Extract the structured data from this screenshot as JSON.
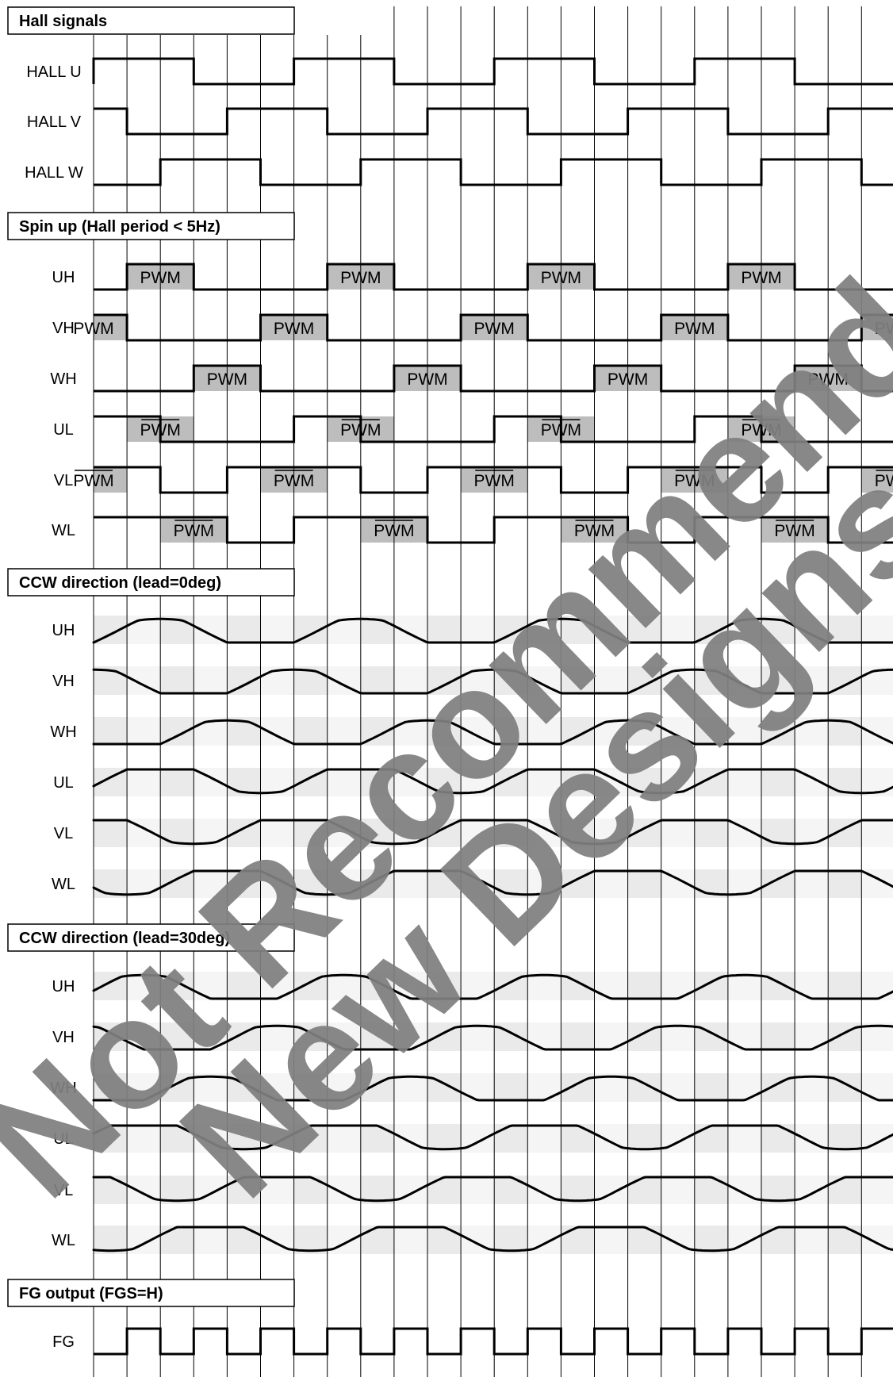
{
  "sections": [
    {
      "title": "Hall signals",
      "signals": [
        "HALL U",
        "HALL V",
        "HALL W"
      ]
    },
    {
      "title": "Spin up (Hall period < 5Hz)",
      "signals": [
        "UH",
        "VH",
        "WH",
        "UL",
        "VL",
        "WL"
      ]
    },
    {
      "title": "CCW direction (lead=0deg)",
      "signals": [
        "UH",
        "VH",
        "WH",
        "UL",
        "VL",
        "WL"
      ]
    },
    {
      "title": "CCW direction (lead=30deg)",
      "signals": [
        "UH",
        "VH",
        "WH",
        "UL",
        "VL",
        "WL"
      ]
    },
    {
      "title": "FG output (FGS=H)",
      "signals": [
        "FG"
      ]
    }
  ],
  "pwm_label": "PWM",
  "watermark": {
    "line1": "Not Recommended for",
    "line2": "New Designs"
  },
  "colors": {
    "line": "#000000",
    "pwm_fill": "#bdbdbd",
    "sine_band": "#d9d9d9",
    "watermark": "#7f7f7f"
  }
}
